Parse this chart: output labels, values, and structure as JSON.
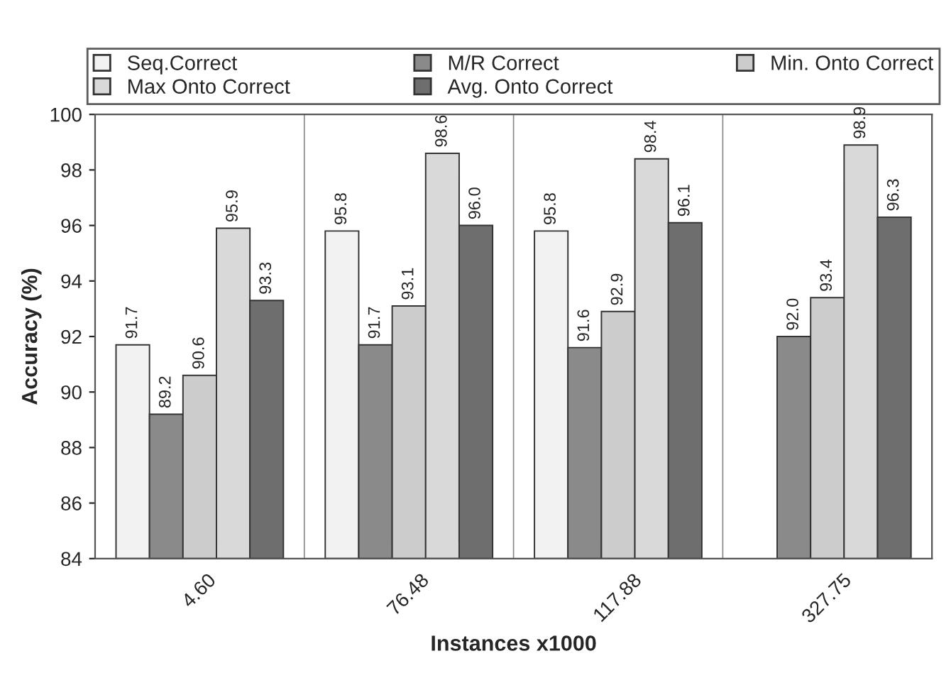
{
  "chart_data": {
    "type": "bar",
    "xlabel": "Instances x1000",
    "ylabel": "Accuracy (%)",
    "categories": [
      "4.60",
      "76.48",
      "117.88",
      "327.75"
    ],
    "series": [
      {
        "name": "Seq.Correct",
        "color": "#f2f2f2",
        "values": [
          91.7,
          95.8,
          95.8,
          null
        ],
        "value_labels": [
          "91.7",
          "95.8",
          "95.8",
          null
        ]
      },
      {
        "name": "M/R Correct",
        "color": "#8a8a8a",
        "values": [
          89.2,
          91.7,
          91.6,
          92.0
        ],
        "value_labels": [
          "89.2",
          "91.7",
          "91.6",
          "92.0"
        ]
      },
      {
        "name": "Min. Onto Correct",
        "color": "#cccccc",
        "values": [
          90.6,
          93.1,
          92.9,
          93.4
        ],
        "value_labels": [
          "90.6",
          "93.1",
          "92.9",
          "93.4"
        ]
      },
      {
        "name": "Max Onto Correct",
        "color": "#d9d9d9",
        "values": [
          95.9,
          98.6,
          98.4,
          98.9
        ],
        "value_labels": [
          "95.9",
          "98.6",
          "98.4",
          "98.9"
        ]
      },
      {
        "name": "Avg. Onto Correct",
        "color": "#6e6e6e",
        "values": [
          93.3,
          96.0,
          96.1,
          96.3
        ],
        "value_labels": [
          "93.3",
          "96.0",
          "96.1",
          "96.3"
        ]
      }
    ],
    "ylim": [
      84,
      100
    ],
    "yticks": [
      84,
      86,
      88,
      90,
      92,
      94,
      96,
      98,
      100
    ],
    "grid": false,
    "legend": "top"
  }
}
